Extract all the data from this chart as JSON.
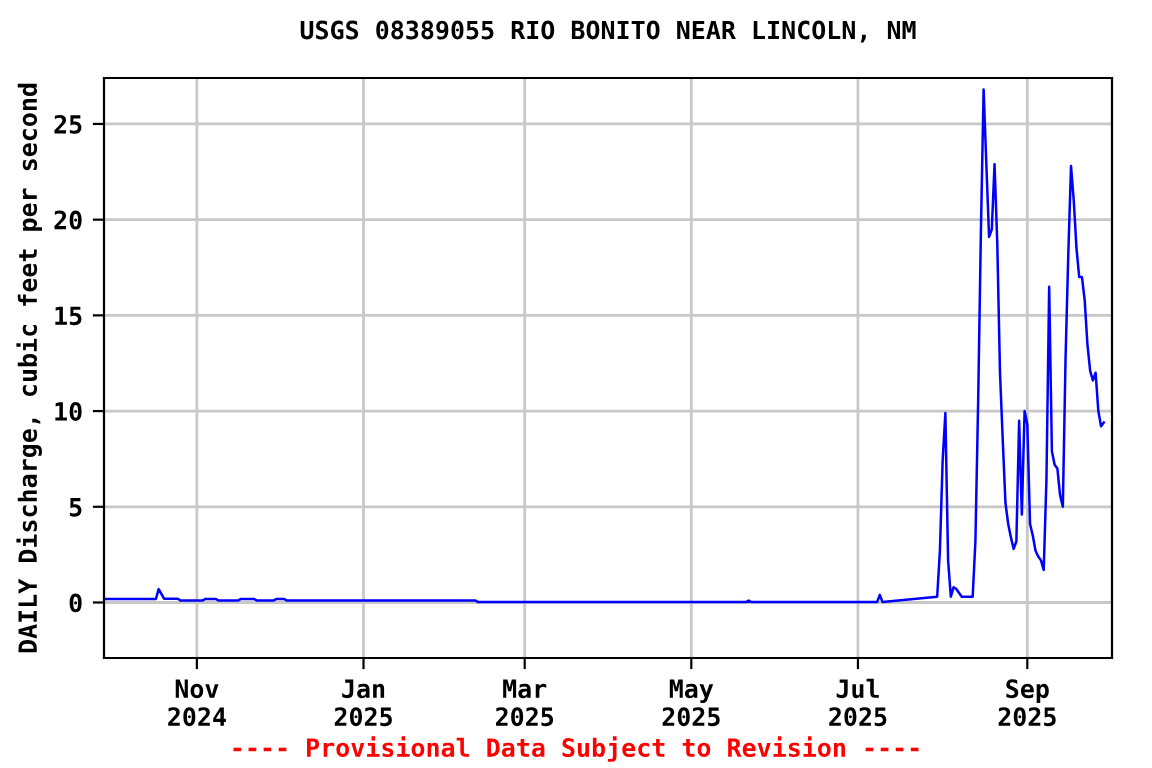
{
  "chart_data": {
    "type": "line",
    "title": "USGS 08389055 RIO BONITO NEAR LINCOLN, NM",
    "ylabel": "DAILY Discharge, cubic feet per second",
    "annotations": [
      "---- Provisional Data Subject to Revision ----"
    ],
    "series": [
      {
        "color": "#0000ff",
        "x": [
          "2024-09-28",
          "2024-10-17",
          "2024-10-18",
          "2024-10-20",
          "2024-10-25",
          "2024-10-26",
          "2024-11-03",
          "2024-11-04",
          "2024-11-08",
          "2024-11-09",
          "2024-11-16",
          "2024-11-17",
          "2024-11-22",
          "2024-11-23",
          "2024-11-29",
          "2024-11-30",
          "2024-12-03",
          "2024-12-04",
          "2025-02-11",
          "2025-02-12",
          "2025-05-21",
          "2025-05-22",
          "2025-05-23",
          "2025-07-08",
          "2025-07-09",
          "2025-07-10",
          "2025-07-30",
          "2025-07-31",
          "2025-08-01",
          "2025-08-02",
          "2025-08-03",
          "2025-08-04",
          "2025-08-05",
          "2025-08-06",
          "2025-08-08",
          "2025-08-12",
          "2025-08-13",
          "2025-08-14",
          "2025-08-15",
          "2025-08-16",
          "2025-08-17",
          "2025-08-18",
          "2025-08-19",
          "2025-08-20",
          "2025-08-21",
          "2025-08-22",
          "2025-08-23",
          "2025-08-24",
          "2025-08-25",
          "2025-08-26",
          "2025-08-27",
          "2025-08-28",
          "2025-08-29",
          "2025-08-30",
          "2025-08-31",
          "2025-09-01",
          "2025-09-02",
          "2025-09-03",
          "2025-09-04",
          "2025-09-05",
          "2025-09-06",
          "2025-09-07",
          "2025-09-08",
          "2025-09-09",
          "2025-09-10",
          "2025-09-11",
          "2025-09-12",
          "2025-09-13",
          "2025-09-14",
          "2025-09-15",
          "2025-09-16",
          "2025-09-17",
          "2025-09-18",
          "2025-09-19",
          "2025-09-20",
          "2025-09-21",
          "2025-09-22",
          "2025-09-23",
          "2025-09-24",
          "2025-09-25",
          "2025-09-26",
          "2025-09-27",
          "2025-09-28",
          "2025-09-29"
        ],
        "values": [
          0.18,
          0.18,
          0.7,
          0.2,
          0.2,
          0.1,
          0.1,
          0.18,
          0.18,
          0.1,
          0.1,
          0.18,
          0.18,
          0.1,
          0.1,
          0.18,
          0.18,
          0.1,
          0.1,
          0.02,
          0.02,
          0.1,
          0.02,
          0.02,
          0.4,
          0.02,
          0.3,
          2.7,
          7.4,
          9.9,
          2.2,
          0.3,
          0.8,
          0.7,
          0.3,
          0.3,
          3.2,
          10.5,
          19.3,
          26.8,
          22.9,
          19.1,
          19.5,
          22.9,
          18.8,
          12.0,
          8.5,
          5.2,
          4.1,
          3.4,
          2.8,
          3.2,
          9.5,
          4.6,
          10.0,
          9.3,
          4.1,
          3.5,
          2.7,
          2.4,
          2.2,
          1.7,
          6.4,
          16.5,
          7.9,
          7.2,
          7.0,
          5.6,
          5.0,
          12.8,
          18.2,
          22.8,
          21.0,
          18.5,
          17.0,
          17.0,
          15.8,
          13.5,
          12.1,
          11.6,
          12.0,
          10.0,
          9.2,
          9.4
        ]
      }
    ],
    "xlim": [
      "2024-09-28",
      "2025-10-02"
    ],
    "xticks": [
      {
        "value": "2024-11-01",
        "label": "Nov\n2024"
      },
      {
        "value": "2025-01-01",
        "label": "Jan\n2025"
      },
      {
        "value": "2025-03-01",
        "label": "Mar\n2025"
      },
      {
        "value": "2025-05-01",
        "label": "May\n2025"
      },
      {
        "value": "2025-07-01",
        "label": "Jul\n2025"
      },
      {
        "value": "2025-09-01",
        "label": "Sep\n2025"
      }
    ],
    "ylim": [
      -2.9,
      27.4
    ],
    "yticks": [
      0,
      5,
      10,
      15,
      20,
      25
    ],
    "grid": true,
    "legend": false
  }
}
